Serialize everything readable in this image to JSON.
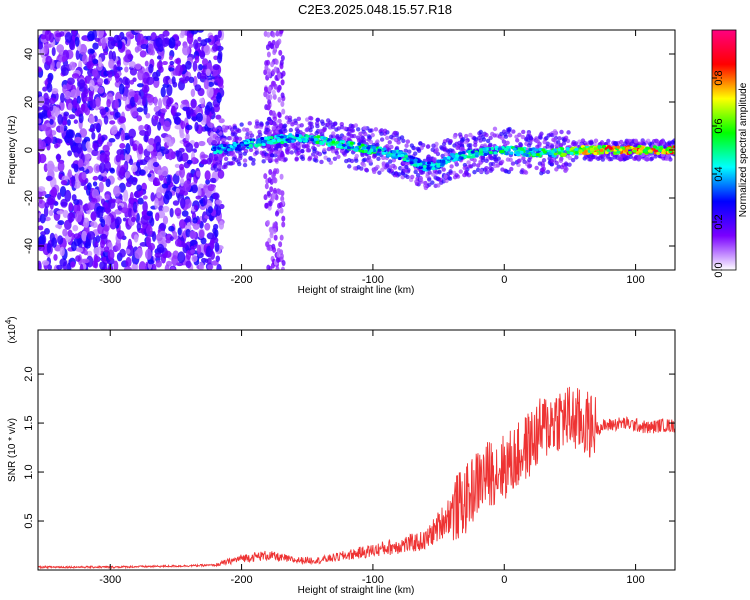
{
  "figure": {
    "title": "C2E3.2025.048.15.57.R18"
  },
  "chart_data": [
    {
      "type": "heatmap",
      "xlabel": "Height of straight line (km)",
      "ylabel": "Frequency (Hz)",
      "xlim": [
        -355,
        130
      ],
      "ylim": [
        -50,
        50
      ],
      "x_ticks": [
        -300,
        -200,
        -100,
        0,
        100
      ],
      "y_ticks": [
        -40,
        -20,
        0,
        20,
        40
      ],
      "colorbar": {
        "label": "Normalized spectral amplitude",
        "range": [
          0.0,
          1.0
        ],
        "ticks": [
          0.0,
          0.2,
          0.4,
          0.6,
          0.8
        ],
        "colormap": [
          "#ffffff",
          "#7a00ff",
          "#0000ff",
          "#00ffff",
          "#00ff00",
          "#ffff00",
          "#ff0000",
          "#ff0080"
        ]
      },
      "ridge": {
        "x": [
          -220,
          -200,
          -180,
          -160,
          -140,
          -120,
          -100,
          -80,
          -60,
          -50,
          -40,
          -30,
          -20,
          -10,
          0,
          20,
          40,
          60,
          80,
          100,
          130
        ],
        "freq": [
          0,
          2,
          4,
          5,
          4,
          2,
          0,
          -2,
          -7,
          -6,
          -3,
          -2,
          -1,
          0,
          0,
          -1,
          -1,
          0,
          0,
          0,
          0
        ],
        "amplitude": [
          0.45,
          0.45,
          0.5,
          0.5,
          0.55,
          0.55,
          0.55,
          0.5,
          0.45,
          0.5,
          0.5,
          0.5,
          0.5,
          0.5,
          0.55,
          0.55,
          0.6,
          0.75,
          0.85,
          0.9,
          0.9
        ]
      }
    },
    {
      "type": "line",
      "xlabel": "Height of straight line (km)",
      "ylabel": "SNR (10 * v/v)",
      "y_multiplier": "(x10",
      "y_multiplier_exp": "4",
      "y_multiplier_close": ")",
      "xlim": [
        -355,
        130
      ],
      "ylim": [
        0,
        2.45
      ],
      "x_ticks": [
        -300,
        -200,
        -100,
        0,
        100
      ],
      "y_ticks": [
        0.5,
        1.0,
        1.5,
        2.0
      ],
      "series": [
        {
          "color": "#ee3333",
          "x": [
            -355,
            -300,
            -250,
            -220,
            -200,
            -180,
            -160,
            -140,
            -120,
            -100,
            -80,
            -60,
            -50,
            -40,
            -30,
            -20,
            -10,
            0,
            10,
            20,
            30,
            40,
            50,
            60,
            70,
            80,
            90,
            100,
            110,
            120,
            130
          ],
          "y": [
            0.03,
            0.03,
            0.04,
            0.05,
            0.12,
            0.15,
            0.1,
            0.1,
            0.15,
            0.2,
            0.25,
            0.3,
            0.45,
            0.6,
            0.7,
            0.9,
            1.0,
            1.05,
            1.15,
            1.3,
            1.45,
            1.55,
            1.55,
            1.5,
            1.45,
            1.48,
            1.5,
            1.48,
            1.45,
            1.48,
            1.47
          ]
        }
      ]
    }
  ]
}
